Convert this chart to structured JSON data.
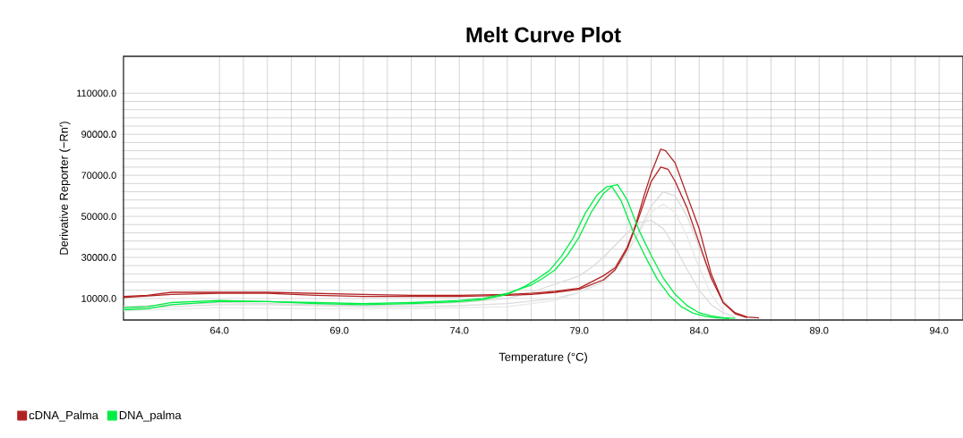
{
  "chart_data": {
    "type": "line",
    "title": "Melt Curve Plot",
    "xlabel": "Temperature (°C)",
    "ylabel": "Derivative Reporter (−Rn′)",
    "xlim": [
      60,
      95
    ],
    "ylim": [
      -500,
      128000
    ],
    "xticks": [
      {
        "value": 64,
        "label": "64.0"
      },
      {
        "value": 69,
        "label": "69.0"
      },
      {
        "value": 74,
        "label": "74.0"
      },
      {
        "value": 79,
        "label": "79.0"
      },
      {
        "value": 84,
        "label": "84.0"
      },
      {
        "value": 89,
        "label": "89.0"
      },
      {
        "value": 94,
        "label": "94.0"
      }
    ],
    "yticks": [
      {
        "value": 10000,
        "label": "10000.0"
      },
      {
        "value": 30000,
        "label": "30000.0"
      },
      {
        "value": 50000,
        "label": "50000.0"
      },
      {
        "value": 70000,
        "label": "70000.0"
      },
      {
        "value": 90000,
        "label": "90000.0"
      },
      {
        "value": 110000,
        "label": "110000.0"
      }
    ],
    "grid": true,
    "legend": "bottom",
    "marker": "none",
    "line_style": "solid",
    "series": [
      {
        "color": "#dcdcdc",
        "x": [
          60,
          62,
          64,
          66,
          68,
          70,
          72,
          74,
          76,
          78,
          79,
          80,
          80.5,
          81,
          81.5,
          82,
          82.5,
          83,
          83.5,
          84,
          84.5,
          85,
          85.5,
          86
        ],
        "values": [
          5000,
          6000,
          7000,
          7000,
          6500,
          6000,
          6000,
          6500,
          7500,
          10000,
          13000,
          18000,
          24000,
          32000,
          43000,
          55000,
          62000,
          60000,
          50000,
          35000,
          20000,
          9000,
          3000,
          800
        ]
      },
      {
        "color": "#dcdcdc",
        "x": [
          60,
          62,
          64,
          66,
          68,
          70,
          72,
          74,
          76,
          77,
          78,
          79,
          79.5,
          80,
          80.5,
          81,
          81.5,
          82,
          82.5,
          83,
          83.5,
          84,
          84.5,
          85,
          85.5
        ],
        "values": [
          6000,
          7000,
          8000,
          7500,
          7000,
          6500,
          7000,
          8000,
          10000,
          13000,
          17000,
          21000,
          25000,
          30000,
          36000,
          42000,
          47000,
          48000,
          44000,
          35000,
          24000,
          14000,
          7000,
          3000,
          1000
        ]
      },
      {
        "color": "#e8e8e8",
        "x": [
          60,
          64,
          68,
          72,
          76,
          78,
          79,
          80,
          81,
          81.5,
          82,
          82.5,
          83,
          83.5,
          84,
          84.5,
          85
        ],
        "values": [
          4000,
          5500,
          5000,
          5000,
          6000,
          9000,
          13000,
          20000,
          33000,
          42000,
          52000,
          56000,
          52000,
          40000,
          25000,
          12000,
          4000
        ]
      },
      {
        "name": "cDNA_Palma",
        "color": "#b22222",
        "x": [
          60,
          61,
          62,
          64,
          66,
          68,
          70,
          72,
          74,
          76,
          77,
          78,
          79,
          80,
          80.5,
          81,
          81.3,
          81.7,
          82,
          82.4,
          82.6,
          83,
          83.5,
          84,
          84.5,
          85,
          85.5,
          86,
          86.5
        ],
        "values": [
          11000,
          11500,
          13000,
          13000,
          13000,
          12500,
          12000,
          11500,
          11500,
          12000,
          12500,
          13500,
          15000,
          21000,
          25000,
          35000,
          44000,
          60000,
          71000,
          82800,
          82000,
          76000,
          60000,
          44000,
          22000,
          8000,
          3000,
          1000,
          500
        ]
      },
      {
        "color": "#b22222",
        "x": [
          60,
          62,
          64,
          66,
          68,
          70,
          72,
          74,
          76,
          77,
          78,
          79,
          80,
          80.5,
          81,
          81.5,
          82,
          82.4,
          82.7,
          83,
          83.5,
          84,
          84.5,
          85,
          85.5,
          86
        ],
        "values": [
          10500,
          12000,
          12500,
          12500,
          11500,
          11000,
          11000,
          11000,
          11500,
          12000,
          13000,
          14500,
          19000,
          24000,
          34000,
          50000,
          67000,
          74000,
          73000,
          67000,
          54000,
          37000,
          20000,
          8000,
          2500,
          600
        ]
      },
      {
        "name": "DNA_palma",
        "color": "#00ee44",
        "x": [
          60,
          61,
          62,
          64,
          66,
          68,
          70,
          72,
          74,
          75,
          76,
          77,
          77.5,
          78,
          78.5,
          79,
          79.5,
          80,
          80.4,
          80.6,
          81,
          81.5,
          82,
          82.5,
          83,
          83.5,
          84,
          84.5,
          85,
          85.5
        ],
        "values": [
          5500,
          6000,
          8000,
          9000,
          8500,
          8000,
          7500,
          8000,
          9000,
          10000,
          12500,
          16500,
          20000,
          24000,
          31000,
          40000,
          52000,
          61000,
          65000,
          65400,
          58000,
          43000,
          31000,
          20000,
          12000,
          6500,
          3000,
          1500,
          600,
          300
        ]
      },
      {
        "color": "#00ee44",
        "x": [
          60,
          61,
          62,
          64,
          66,
          68,
          70,
          72,
          74,
          75,
          76,
          76.75,
          77.25,
          77.75,
          78.25,
          78.75,
          79.25,
          79.75,
          80.15,
          80.35,
          80.75,
          81.25,
          81.75,
          82.25,
          82.75,
          83.25,
          83.75,
          84.25,
          84.75,
          85.25
        ],
        "values": [
          4500,
          5000,
          7000,
          8500,
          8500,
          7500,
          7000,
          7500,
          8500,
          9500,
          12000,
          16000,
          19500,
          23500,
          30500,
          39500,
          51500,
          60500,
          64500,
          64800,
          57500,
          42500,
          30500,
          19500,
          11500,
          6000,
          2800,
          1300,
          500,
          200
        ]
      }
    ]
  }
}
